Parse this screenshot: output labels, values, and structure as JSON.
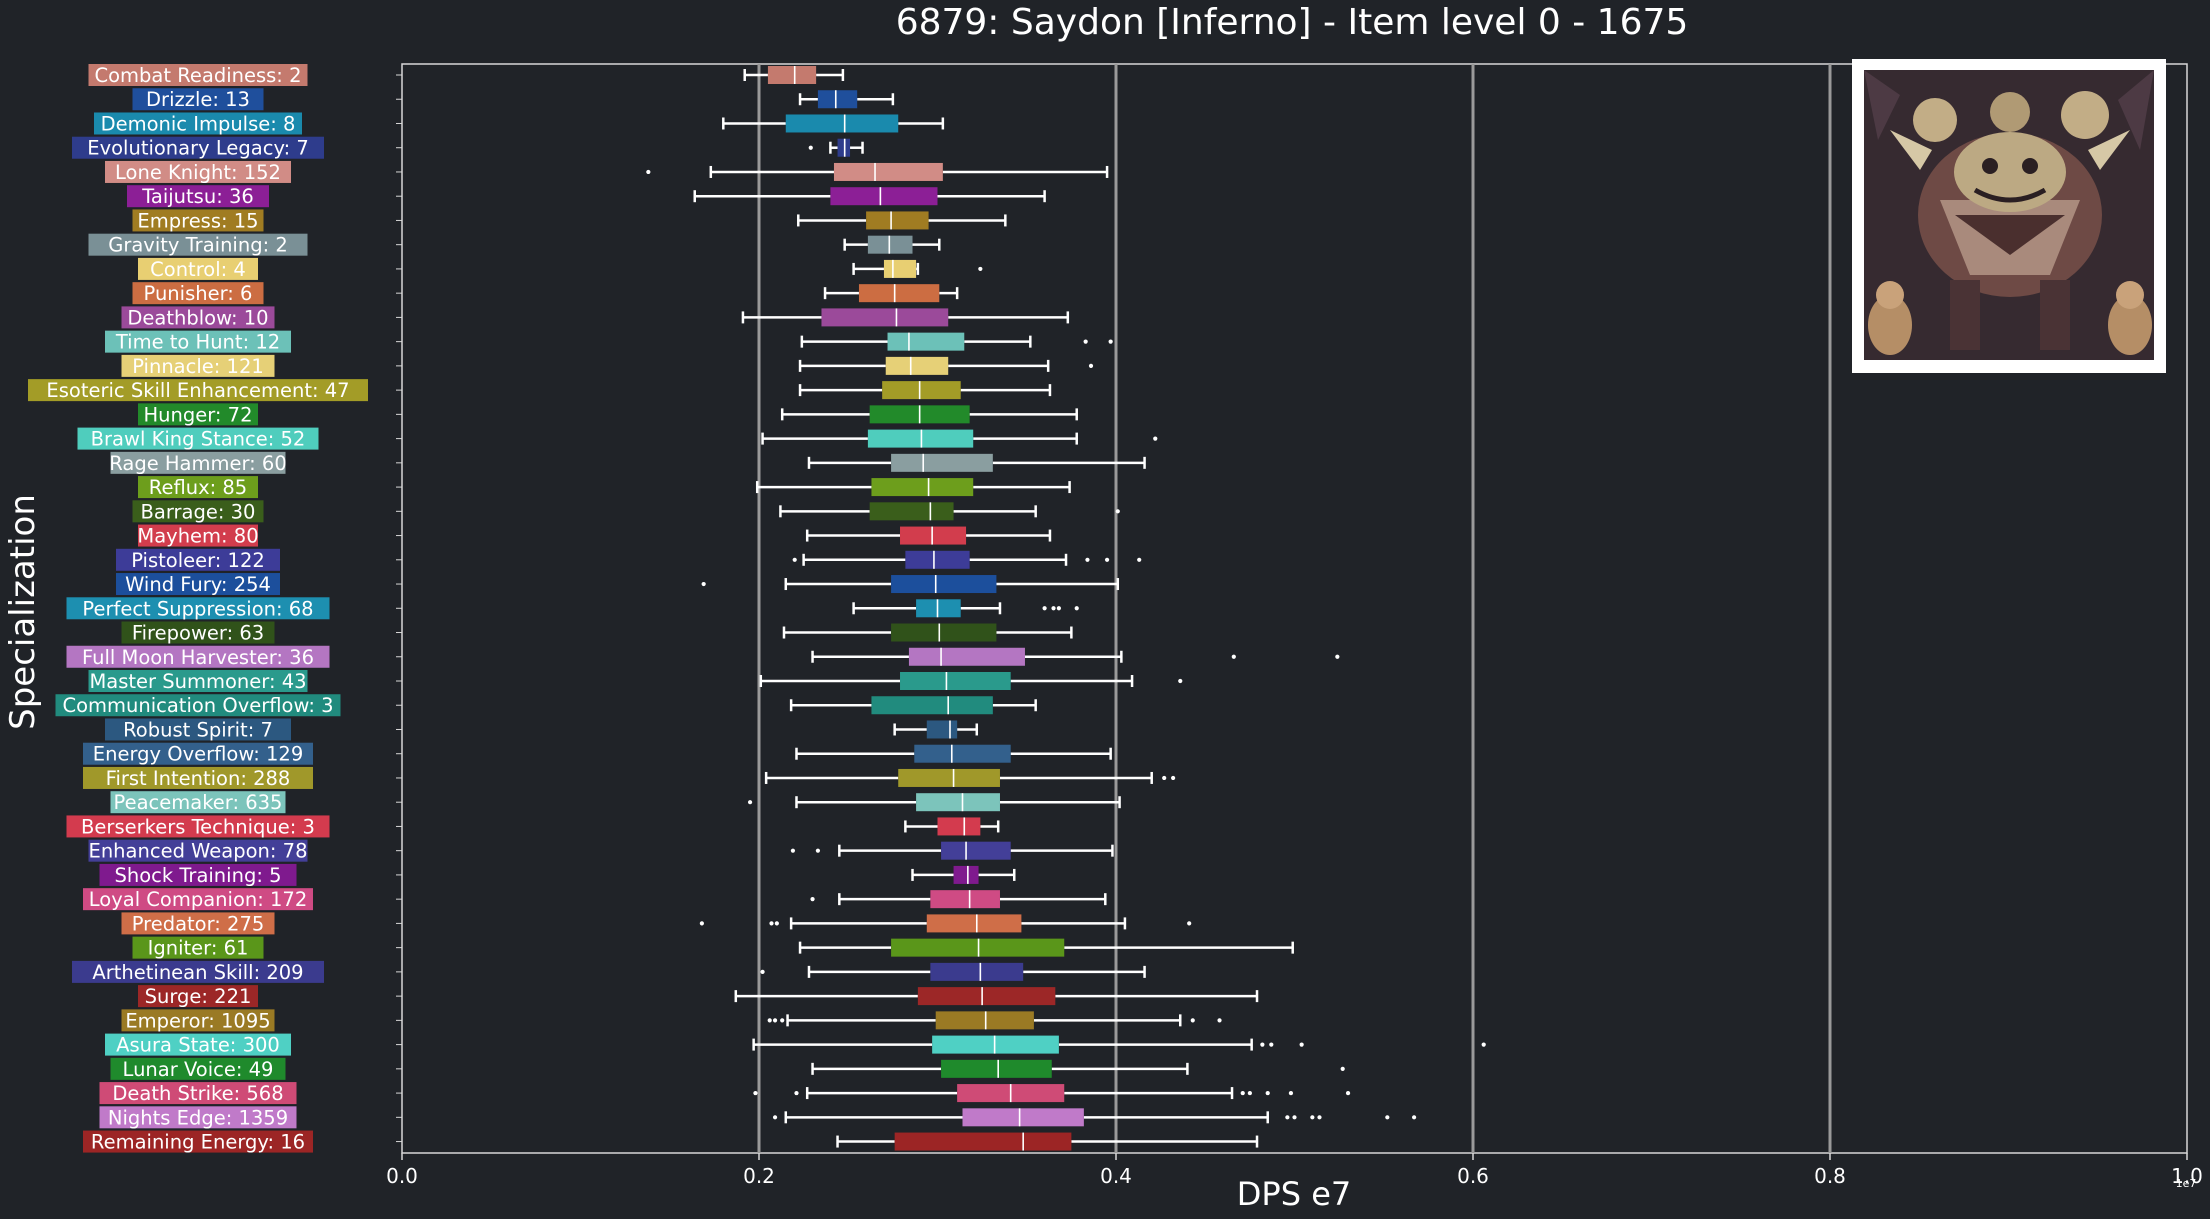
{
  "chart_data": {
    "type": "boxplot",
    "orientation": "horizontal",
    "title": "6879: Saydon [Inferno] - Item level 0 - 1675",
    "xlabel": "DPS e7",
    "ylabel": "Specialization",
    "x_offset_label": "1e7",
    "xlim": [
      0,
      1.0
    ],
    "xticks": [
      0.0,
      0.2,
      0.4,
      0.6,
      0.8,
      1.0
    ],
    "xtick_labels": [
      "0.0",
      "0.2",
      "0.4",
      "0.6",
      "0.8",
      "1.0"
    ],
    "grid": "vertical major gridlines",
    "inset_image": "boss-portrait",
    "series": [
      {
        "label": "Combat Readiness: 2",
        "color": "#c47a6e",
        "whislo": 0.192,
        "q1": 0.205,
        "med": 0.22,
        "q3": 0.232,
        "whishi": 0.247,
        "fliers": []
      },
      {
        "label": "Drizzle: 13",
        "color": "#1f4f9c",
        "whislo": 0.223,
        "q1": 0.233,
        "med": 0.243,
        "q3": 0.255,
        "whishi": 0.275,
        "fliers": []
      },
      {
        "label": "Demonic Impulse: 8",
        "color": "#1a8aad",
        "whislo": 0.18,
        "q1": 0.215,
        "med": 0.248,
        "q3": 0.278,
        "whishi": 0.303,
        "fliers": []
      },
      {
        "label": "Evolutionary Legacy: 7",
        "color": "#2e3c8c",
        "whislo": 0.24,
        "q1": 0.244,
        "med": 0.248,
        "q3": 0.251,
        "whishi": 0.258,
        "fliers": [
          0.229
        ]
      },
      {
        "label": "Lone Knight: 152",
        "color": "#d18c86",
        "whislo": 0.173,
        "q1": 0.242,
        "med": 0.265,
        "q3": 0.303,
        "whishi": 0.395,
        "fliers": [
          0.138
        ]
      },
      {
        "label": "Taijutsu: 36",
        "color": "#8c1f96",
        "whislo": 0.164,
        "q1": 0.24,
        "med": 0.268,
        "q3": 0.3,
        "whishi": 0.36,
        "fliers": []
      },
      {
        "label": "Empress: 15",
        "color": "#a07c22",
        "whislo": 0.222,
        "q1": 0.26,
        "med": 0.274,
        "q3": 0.295,
        "whishi": 0.338,
        "fliers": []
      },
      {
        "label": "Gravity Training: 2",
        "color": "#7a9096",
        "whislo": 0.248,
        "q1": 0.261,
        "med": 0.273,
        "q3": 0.286,
        "whishi": 0.301,
        "fliers": []
      },
      {
        "label": "Control: 4",
        "color": "#e8cf72",
        "whislo": 0.253,
        "q1": 0.27,
        "med": 0.275,
        "q3": 0.288,
        "whishi": 0.289,
        "fliers": [
          0.324
        ]
      },
      {
        "label": "Punisher: 6",
        "color": "#cc6d42",
        "whislo": 0.237,
        "q1": 0.256,
        "med": 0.276,
        "q3": 0.301,
        "whishi": 0.311,
        "fliers": []
      },
      {
        "label": "Deathblow: 10",
        "color": "#9b4a9a",
        "whislo": 0.191,
        "q1": 0.235,
        "med": 0.277,
        "q3": 0.306,
        "whishi": 0.373,
        "fliers": []
      },
      {
        "label": "Time to Hunt: 12",
        "color": "#6cc1b8",
        "whislo": 0.224,
        "q1": 0.272,
        "med": 0.284,
        "q3": 0.315,
        "whishi": 0.352,
        "fliers": [
          0.383,
          0.397
        ]
      },
      {
        "label": "Pinnacle: 121",
        "color": "#e6d077",
        "whislo": 0.223,
        "q1": 0.271,
        "med": 0.285,
        "q3": 0.306,
        "whishi": 0.362,
        "fliers": [
          0.386
        ]
      },
      {
        "label": "Esoteric Skill Enhancement: 47",
        "color": "#a39c27",
        "whislo": 0.223,
        "q1": 0.269,
        "med": 0.29,
        "q3": 0.313,
        "whishi": 0.363,
        "fliers": []
      },
      {
        "label": "Hunger: 72",
        "color": "#228a2a",
        "whislo": 0.213,
        "q1": 0.262,
        "med": 0.29,
        "q3": 0.318,
        "whishi": 0.378,
        "fliers": []
      },
      {
        "label": "Brawl King Stance: 52",
        "color": "#4fcdbd",
        "whislo": 0.202,
        "q1": 0.261,
        "med": 0.291,
        "q3": 0.32,
        "whishi": 0.378,
        "fliers": [
          0.422
        ]
      },
      {
        "label": "Rage Hammer: 60",
        "color": "#8a9ea0",
        "whislo": 0.228,
        "q1": 0.274,
        "med": 0.292,
        "q3": 0.331,
        "whishi": 0.416,
        "fliers": []
      },
      {
        "label": "Reflux: 85",
        "color": "#6d9e1c",
        "whislo": 0.199,
        "q1": 0.263,
        "med": 0.295,
        "q3": 0.32,
        "whishi": 0.374,
        "fliers": []
      },
      {
        "label": "Barrage: 30",
        "color": "#3a5e1b",
        "whislo": 0.212,
        "q1": 0.262,
        "med": 0.296,
        "q3": 0.309,
        "whishi": 0.355,
        "fliers": [
          0.401
        ]
      },
      {
        "label": "Mayhem: 80",
        "color": "#d23d4d",
        "whislo": 0.227,
        "q1": 0.279,
        "med": 0.297,
        "q3": 0.316,
        "whishi": 0.363,
        "fliers": []
      },
      {
        "label": "Pistoleer: 122",
        "color": "#3d3c98",
        "whislo": 0.225,
        "q1": 0.282,
        "med": 0.298,
        "q3": 0.318,
        "whishi": 0.372,
        "fliers": [
          0.22,
          0.384,
          0.395,
          0.413
        ]
      },
      {
        "label": "Wind Fury: 254",
        "color": "#1c4f9c",
        "whislo": 0.215,
        "q1": 0.274,
        "med": 0.299,
        "q3": 0.333,
        "whishi": 0.401,
        "fliers": [
          0.169
        ]
      },
      {
        "label": "Perfect Suppression: 68",
        "color": "#1d8fb0",
        "whislo": 0.253,
        "q1": 0.288,
        "med": 0.3,
        "q3": 0.313,
        "whishi": 0.335,
        "fliers": [
          0.36,
          0.365,
          0.368,
          0.378
        ]
      },
      {
        "label": "Firepower: 63",
        "color": "#30521a",
        "whislo": 0.214,
        "q1": 0.274,
        "med": 0.301,
        "q3": 0.333,
        "whishi": 0.375,
        "fliers": []
      },
      {
        "label": "Full Moon Harvester: 36",
        "color": "#b476c2",
        "whislo": 0.23,
        "q1": 0.284,
        "med": 0.302,
        "q3": 0.349,
        "whishi": 0.403,
        "fliers": [
          0.466,
          0.524
        ]
      },
      {
        "label": "Master Summoner: 43",
        "color": "#2a9a8c",
        "whislo": 0.201,
        "q1": 0.279,
        "med": 0.305,
        "q3": 0.341,
        "whishi": 0.409,
        "fliers": [
          0.436
        ]
      },
      {
        "label": "Communication Overflow: 3",
        "color": "#218b7e",
        "whislo": 0.218,
        "q1": 0.263,
        "med": 0.306,
        "q3": 0.331,
        "whishi": 0.355,
        "fliers": []
      },
      {
        "label": "Robust Spirit: 7",
        "color": "#2c5880",
        "whislo": 0.276,
        "q1": 0.294,
        "med": 0.307,
        "q3": 0.311,
        "whishi": 0.322,
        "fliers": []
      },
      {
        "label": "Energy Overflow: 129",
        "color": "#33608c",
        "whislo": 0.221,
        "q1": 0.287,
        "med": 0.308,
        "q3": 0.341,
        "whishi": 0.397,
        "fliers": []
      },
      {
        "label": "First Intention: 288",
        "color": "#a0982a",
        "whislo": 0.204,
        "q1": 0.278,
        "med": 0.309,
        "q3": 0.335,
        "whishi": 0.42,
        "fliers": [
          0.427,
          0.432
        ]
      },
      {
        "label": "Peacemaker: 635",
        "color": "#7cc4bb",
        "whislo": 0.221,
        "q1": 0.288,
        "med": 0.314,
        "q3": 0.335,
        "whishi": 0.402,
        "fliers": [
          0.195
        ]
      },
      {
        "label": "Berserkers Technique: 3",
        "color": "#d33b4e",
        "whislo": 0.282,
        "q1": 0.3,
        "med": 0.315,
        "q3": 0.324,
        "whishi": 0.334,
        "fliers": []
      },
      {
        "label": "Enhanced Weapon: 78",
        "color": "#433f98",
        "whislo": 0.245,
        "q1": 0.302,
        "med": 0.316,
        "q3": 0.341,
        "whishi": 0.398,
        "fliers": [
          0.219,
          0.233
        ]
      },
      {
        "label": "Shock Training: 5",
        "color": "#7f1a8e",
        "whislo": 0.286,
        "q1": 0.309,
        "med": 0.317,
        "q3": 0.323,
        "whishi": 0.343,
        "fliers": []
      },
      {
        "label": "Loyal Companion: 172",
        "color": "#cf4b84",
        "whislo": 0.245,
        "q1": 0.296,
        "med": 0.318,
        "q3": 0.335,
        "whishi": 0.394,
        "fliers": [
          0.23
        ]
      },
      {
        "label": "Predator: 275",
        "color": "#cf6e48",
        "whislo": 0.218,
        "q1": 0.294,
        "med": 0.322,
        "q3": 0.347,
        "whishi": 0.405,
        "fliers": [
          0.168,
          0.207,
          0.21,
          0.441
        ]
      },
      {
        "label": "Igniter: 61",
        "color": "#5a961a",
        "whislo": 0.223,
        "q1": 0.274,
        "med": 0.323,
        "q3": 0.371,
        "whishi": 0.499,
        "fliers": []
      },
      {
        "label": "Arthetinean Skill: 209",
        "color": "#3b3b8e",
        "whislo": 0.228,
        "q1": 0.296,
        "med": 0.324,
        "q3": 0.348,
        "whishi": 0.416,
        "fliers": [
          0.202
        ]
      },
      {
        "label": "Surge: 221",
        "color": "#9c2727",
        "whislo": 0.187,
        "q1": 0.289,
        "med": 0.325,
        "q3": 0.366,
        "whishi": 0.479,
        "fliers": []
      },
      {
        "label": "Emperor: 1095",
        "color": "#9a7a24",
        "whislo": 0.216,
        "q1": 0.299,
        "med": 0.327,
        "q3": 0.354,
        "whishi": 0.436,
        "fliers": [
          0.206,
          0.209,
          0.213,
          0.443,
          0.458
        ]
      },
      {
        "label": "Asura State: 300",
        "color": "#4fd0c4",
        "whislo": 0.197,
        "q1": 0.297,
        "med": 0.332,
        "q3": 0.368,
        "whishi": 0.476,
        "fliers": [
          0.482,
          0.487,
          0.504,
          0.606
        ]
      },
      {
        "label": "Lunar Voice: 49",
        "color": "#1f8a2c",
        "whislo": 0.23,
        "q1": 0.302,
        "med": 0.334,
        "q3": 0.364,
        "whishi": 0.44,
        "fliers": [
          0.527
        ]
      },
      {
        "label": "Death Strike: 568",
        "color": "#cf4b76",
        "whislo": 0.227,
        "q1": 0.311,
        "med": 0.341,
        "q3": 0.371,
        "whishi": 0.465,
        "fliers": [
          0.198,
          0.221,
          0.471,
          0.475,
          0.485,
          0.498,
          0.53
        ]
      },
      {
        "label": "Nights Edge: 1359",
        "color": "#c07ac9",
        "whislo": 0.215,
        "q1": 0.314,
        "med": 0.346,
        "q3": 0.382,
        "whishi": 0.485,
        "fliers": [
          0.209,
          0.496,
          0.5,
          0.51,
          0.514,
          0.552,
          0.567
        ]
      },
      {
        "label": "Remaining Energy: 16",
        "color": "#9c2525",
        "whislo": 0.244,
        "q1": 0.276,
        "med": 0.348,
        "q3": 0.375,
        "whishi": 0.479,
        "fliers": []
      }
    ]
  }
}
